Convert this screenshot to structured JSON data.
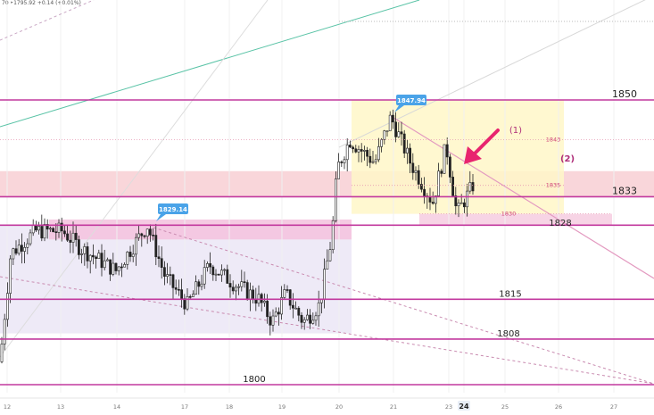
{
  "header": {
    "ohlc_text": "70 ‣1795.92 +0.14 (+0.01%)"
  },
  "chart_data": {
    "type": "candlestick",
    "title": "",
    "x_ticks": [
      "12",
      "13",
      "14",
      "17",
      "18",
      "19",
      "20",
      "21",
      "23",
      "24",
      "25",
      "26",
      "27"
    ],
    "current_x_tick": "24",
    "price_levels": [
      1850,
      1833,
      1828,
      1815,
      1808,
      1800
    ],
    "level_labels": [
      "1850",
      "1833",
      "1828",
      "1815",
      "1808",
      "1800"
    ],
    "minor_levels": [
      1843,
      1835,
      1830
    ],
    "minor_level_labels": [
      "1843",
      "1835",
      "1830"
    ],
    "callouts": [
      {
        "label": "1829.14",
        "price": 1829.14,
        "date": "14"
      },
      {
        "label": "1847.94",
        "price": 1847.94,
        "date": "21"
      }
    ],
    "annotations": [
      "(1)",
      "(2)"
    ],
    "zones": [
      {
        "name": "pink-resistance-band",
        "from": 1833,
        "to": 1837.5,
        "color": "#f8d2d6"
      },
      {
        "name": "lavender-range-box",
        "from": 1809,
        "to": 1828,
        "color": "#ece8f6"
      },
      {
        "name": "magenta-top-band",
        "from": 1825.5,
        "to": 1829,
        "color": "#f4c4df"
      },
      {
        "name": "yellow-consolidation-box",
        "from": 1830,
        "to": 1850,
        "color": "#fff7c8"
      },
      {
        "name": "pink-support-band",
        "from": 1828,
        "to": 1830,
        "color": "#f6cfe2"
      }
    ],
    "colors": {
      "level_line": "#c2389e",
      "green_trend": "#59c3a6",
      "callout": "#4aa3e8",
      "arrow": "#e8256f",
      "candle": "#222222",
      "dashed": "#c98bb0"
    }
  }
}
